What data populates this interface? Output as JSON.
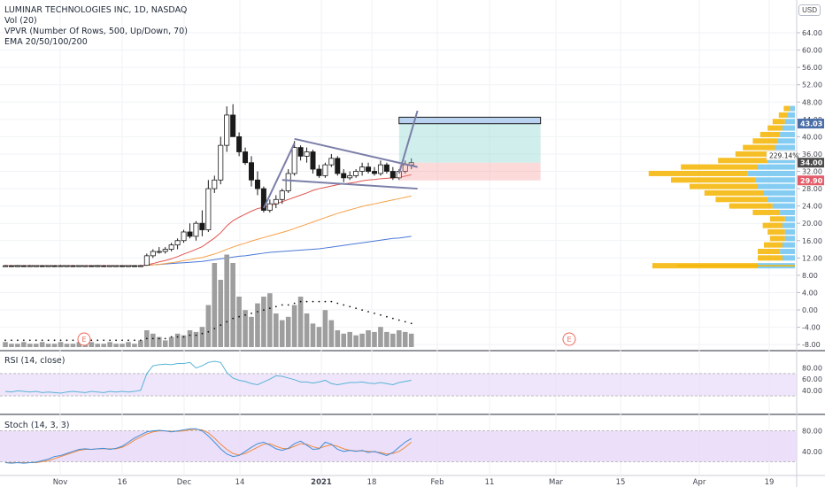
{
  "chart_title": "LUMINAR TECHNOLOGIES INC, 1D, NASDAQ",
  "indicators": [
    "Vol (20)",
    "VPVR (Number Of Rows, 500, Up/Down, 70)",
    "EMA 20/50/100/200"
  ],
  "currency": "USD",
  "rsi_label": "RSI (14, close)",
  "stoch_label": "Stoch (14, 3, 3)",
  "price_axis_labels": [
    "64.00",
    "60.00",
    "56.00",
    "52.00",
    "48.00",
    "44.00",
    "40.00",
    "36.00",
    "32.00",
    "28.00",
    "24.00",
    "20.00",
    "16.00",
    "12.00",
    "8.00",
    "4.00",
    "0.00",
    "-4.00",
    "-8.00"
  ],
  "price_badges": [
    {
      "label": "43.03",
      "value": 43.03,
      "color": "#4a6ea8"
    },
    {
      "label": "34.00",
      "value": 34.0,
      "color": "#4a4a4a"
    },
    {
      "label": "29.90",
      "value": 29.9,
      "color": "#e35d6a"
    }
  ],
  "percent_label": "229.14%",
  "rsi_axis_labels": [
    "80.00",
    "60.00",
    "40.00"
  ],
  "stoch_axis_labels": [
    "80.00",
    "40.00"
  ],
  "x_axis_labels": [
    "Nov",
    "16",
    "Dec",
    "14",
    "2021",
    "18",
    "Feb",
    "11",
    "Mar",
    "15",
    "Apr",
    "19"
  ],
  "earnings_marker": "E",
  "colors": {
    "up_candle": "#ffffff",
    "down_candle": "#1a1a1a",
    "ema20": "#e2544e",
    "ema50": "#f5a14a",
    "ema100": "#4a78d6",
    "volume": "#9e9e9e",
    "vpvr_up": "#6fc3f0",
    "vpvr_down": "#f5b400",
    "rsi": "#57b4d6",
    "stoch_k": "#3f8fd9",
    "stoch_d": "#f08a3c",
    "band_fill": "#eadcfa",
    "pattern": "#7b7fa8"
  },
  "chart_data": {
    "type": "candlestick",
    "ylim": [
      -8,
      64
    ],
    "candles": [
      {
        "o": 10.2,
        "h": 10.4,
        "l": 10.0,
        "c": 10.2
      },
      {
        "o": 10.2,
        "h": 10.3,
        "l": 10.0,
        "c": 10.1
      },
      {
        "o": 10.1,
        "h": 10.4,
        "l": 10.0,
        "c": 10.2
      },
      {
        "o": 10.2,
        "h": 10.3,
        "l": 10.0,
        "c": 10.1
      },
      {
        "o": 10.1,
        "h": 10.4,
        "l": 10.0,
        "c": 10.2
      },
      {
        "o": 10.2,
        "h": 10.3,
        "l": 10.0,
        "c": 10.2
      },
      {
        "o": 10.2,
        "h": 10.3,
        "l": 10.0,
        "c": 10.1
      },
      {
        "o": 10.1,
        "h": 10.3,
        "l": 10.0,
        "c": 10.2
      },
      {
        "o": 10.2,
        "h": 10.3,
        "l": 10.0,
        "c": 10.1
      },
      {
        "o": 10.1,
        "h": 10.4,
        "l": 10.0,
        "c": 10.2
      },
      {
        "o": 10.2,
        "h": 10.3,
        "l": 10.0,
        "c": 10.2
      },
      {
        "o": 10.2,
        "h": 10.3,
        "l": 10.0,
        "c": 10.1
      },
      {
        "o": 10.1,
        "h": 10.3,
        "l": 10.0,
        "c": 10.2
      },
      {
        "o": 10.2,
        "h": 10.3,
        "l": 10.0,
        "c": 10.2
      },
      {
        "o": 10.2,
        "h": 10.3,
        "l": 10.0,
        "c": 10.1
      },
      {
        "o": 10.1,
        "h": 10.4,
        "l": 10.0,
        "c": 10.2
      },
      {
        "o": 10.2,
        "h": 10.3,
        "l": 10.0,
        "c": 10.1
      },
      {
        "o": 10.1,
        "h": 10.3,
        "l": 10.0,
        "c": 10.2
      },
      {
        "o": 10.2,
        "h": 10.3,
        "l": 10.0,
        "c": 10.2
      },
      {
        "o": 10.2,
        "h": 10.3,
        "l": 10.0,
        "c": 10.1
      },
      {
        "o": 10.1,
        "h": 10.3,
        "l": 10.0,
        "c": 10.2
      },
      {
        "o": 10.2,
        "h": 10.3,
        "l": 10.0,
        "c": 10.1
      },
      {
        "o": 10.1,
        "h": 10.4,
        "l": 10.0,
        "c": 10.2
      },
      {
        "o": 10.3,
        "h": 13.0,
        "l": 10.2,
        "c": 12.5
      },
      {
        "o": 12.5,
        "h": 14.0,
        "l": 12.0,
        "c": 13.5
      },
      {
        "o": 13.5,
        "h": 14.5,
        "l": 13.0,
        "c": 13.5
      },
      {
        "o": 13.5,
        "h": 14.5,
        "l": 13.0,
        "c": 14.0
      },
      {
        "o": 14.0,
        "h": 15.5,
        "l": 13.5,
        "c": 15.0
      },
      {
        "o": 15.0,
        "h": 16.5,
        "l": 14.0,
        "c": 16.0
      },
      {
        "o": 16.0,
        "h": 18.5,
        "l": 15.5,
        "c": 18.0
      },
      {
        "o": 18.0,
        "h": 20.0,
        "l": 16.5,
        "c": 17.0
      },
      {
        "o": 17.0,
        "h": 20.5,
        "l": 16.0,
        "c": 20.0
      },
      {
        "o": 20.0,
        "h": 23.0,
        "l": 17.0,
        "c": 18.5
      },
      {
        "o": 18.5,
        "h": 30.0,
        "l": 18.0,
        "c": 28.0
      },
      {
        "o": 28.0,
        "h": 31.0,
        "l": 27.0,
        "c": 30.0
      },
      {
        "o": 30.0,
        "h": 40.0,
        "l": 29.0,
        "c": 38.0
      },
      {
        "o": 38.0,
        "h": 47.0,
        "l": 36.5,
        "c": 45.0
      },
      {
        "o": 45.0,
        "h": 47.5,
        "l": 40.0,
        "c": 40.0
      },
      {
        "o": 40.0,
        "h": 41.0,
        "l": 35.5,
        "c": 36.5
      },
      {
        "o": 36.5,
        "h": 37.5,
        "l": 33.5,
        "c": 34.0
      },
      {
        "o": 34.0,
        "h": 35.5,
        "l": 28.5,
        "c": 30.0
      },
      {
        "o": 30.0,
        "h": 32.0,
        "l": 26.5,
        "c": 28.0
      },
      {
        "o": 28.0,
        "h": 28.5,
        "l": 22.5,
        "c": 23.0
      },
      {
        "o": 23.0,
        "h": 25.5,
        "l": 22.5,
        "c": 24.5
      },
      {
        "o": 24.5,
        "h": 26.5,
        "l": 23.5,
        "c": 25.5
      },
      {
        "o": 25.5,
        "h": 28.0,
        "l": 24.5,
        "c": 27.5
      },
      {
        "o": 27.5,
        "h": 32.5,
        "l": 27.0,
        "c": 31.5
      },
      {
        "o": 31.5,
        "h": 39.0,
        "l": 31.0,
        "c": 37.5
      },
      {
        "o": 37.5,
        "h": 38.0,
        "l": 34.5,
        "c": 35.5
      },
      {
        "o": 35.5,
        "h": 37.5,
        "l": 34.0,
        "c": 36.5
      },
      {
        "o": 36.5,
        "h": 37.0,
        "l": 31.5,
        "c": 32.5
      },
      {
        "o": 32.5,
        "h": 33.5,
        "l": 30.5,
        "c": 31.0
      },
      {
        "o": 31.0,
        "h": 34.0,
        "l": 30.5,
        "c": 33.5
      },
      {
        "o": 33.5,
        "h": 36.0,
        "l": 33.0,
        "c": 35.0
      },
      {
        "o": 35.0,
        "h": 35.5,
        "l": 31.0,
        "c": 31.5
      },
      {
        "o": 31.5,
        "h": 32.5,
        "l": 29.5,
        "c": 30.5
      },
      {
        "o": 30.5,
        "h": 32.0,
        "l": 30.0,
        "c": 31.0
      },
      {
        "o": 31.0,
        "h": 32.5,
        "l": 30.5,
        "c": 32.0
      },
      {
        "o": 32.0,
        "h": 34.0,
        "l": 31.0,
        "c": 33.0
      },
      {
        "o": 33.0,
        "h": 34.0,
        "l": 31.5,
        "c": 32.0
      },
      {
        "o": 32.0,
        "h": 33.0,
        "l": 31.0,
        "c": 31.5
      },
      {
        "o": 31.5,
        "h": 34.5,
        "l": 31.0,
        "c": 33.5
      },
      {
        "o": 33.5,
        "h": 34.0,
        "l": 31.5,
        "c": 32.0
      },
      {
        "o": 32.0,
        "h": 33.0,
        "l": 30.0,
        "c": 30.5
      },
      {
        "o": 30.5,
        "h": 32.5,
        "l": 30.0,
        "c": 32.0
      },
      {
        "o": 32.0,
        "h": 34.5,
        "l": 31.5,
        "c": 33.5
      },
      {
        "o": 33.5,
        "h": 35.0,
        "l": 32.5,
        "c": 34.0
      }
    ],
    "ema20": [
      10.2,
      10.2,
      10.2,
      10.2,
      10.2,
      10.2,
      10.2,
      10.2,
      10.2,
      10.2,
      10.2,
      10.2,
      10.2,
      10.2,
      10.2,
      10.2,
      10.2,
      10.2,
      10.2,
      10.2,
      10.2,
      10.2,
      10.2,
      10.4,
      10.7,
      11.1,
      11.4,
      11.8,
      12.3,
      12.9,
      13.4,
      14.0,
      14.6,
      15.6,
      16.6,
      17.8,
      19.4,
      20.6,
      21.4,
      22.1,
      22.8,
      23.4,
      23.7,
      24.1,
      24.5,
      25.0,
      25.5,
      26.0,
      26.5,
      27.0,
      27.6,
      28.0,
      28.3,
      28.6,
      28.9,
      29.1,
      29.3,
      29.5,
      29.8,
      30.0,
      30.1,
      30.3,
      30.4,
      30.5,
      30.6,
      30.9,
      31.2
    ],
    "ema50": [
      null,
      null,
      null,
      null,
      null,
      null,
      null,
      null,
      null,
      null,
      null,
      null,
      null,
      null,
      null,
      null,
      null,
      null,
      null,
      null,
      null,
      null,
      10.2,
      10.3,
      10.4,
      10.5,
      10.7,
      10.9,
      11.1,
      11.4,
      11.6,
      11.9,
      12.1,
      12.5,
      12.9,
      13.4,
      14.0,
      14.5,
      15.0,
      15.4,
      15.9,
      16.3,
      16.7,
      17.1,
      17.5,
      17.9,
      18.3,
      18.8,
      19.3,
      19.8,
      20.3,
      20.8,
      21.3,
      21.8,
      22.3,
      22.7,
      23.1,
      23.5,
      23.9,
      24.2,
      24.5,
      24.8,
      25.1,
      25.4,
      25.7,
      26.0,
      26.3
    ],
    "ema100": [
      null,
      null,
      null,
      null,
      null,
      null,
      null,
      null,
      null,
      null,
      null,
      null,
      null,
      null,
      null,
      null,
      null,
      null,
      null,
      null,
      null,
      null,
      10.2,
      10.3,
      10.4,
      10.5,
      10.6,
      10.7,
      10.8,
      10.9,
      11.0,
      11.1,
      11.2,
      11.4,
      11.6,
      11.8,
      12.0,
      12.2,
      12.4,
      12.5,
      12.7,
      12.9,
      13.1,
      13.3,
      13.4,
      13.5,
      13.6,
      13.7,
      13.8,
      13.9,
      14.0,
      14.1,
      14.3,
      14.5,
      14.7,
      14.9,
      15.1,
      15.3,
      15.5,
      15.7,
      15.9,
      16.1,
      16.3,
      16.5,
      16.6,
      16.8,
      17.0
    ],
    "ema200_dashed": [
      10.2,
      10.2,
      10.2,
      10.2,
      10.2,
      10.2,
      10.2,
      10.2,
      10.2,
      10.2,
      10.2,
      10.2,
      10.2,
      10.2,
      10.2,
      10.2,
      10.2,
      10.2,
      10.2,
      10.2,
      10.2,
      10.2,
      10.2
    ],
    "volume": [
      0.3,
      0.2,
      0.2,
      0.3,
      0.2,
      0.2,
      0.3,
      0.2,
      0.2,
      0.3,
      0.2,
      0.2,
      0.3,
      0.2,
      0.3,
      0.2,
      0.2,
      0.3,
      0.2,
      0.2,
      0.3,
      0.2,
      0.4,
      1.0,
      0.8,
      0.6,
      0.4,
      0.6,
      0.8,
      0.7,
      1.0,
      0.9,
      1.2,
      2.5,
      5.0,
      4.0,
      5.5,
      5.0,
      3.0,
      2.2,
      1.8,
      2.6,
      3.0,
      3.2,
      2.0,
      1.6,
      1.8,
      2.5,
      3.0,
      2.0,
      1.4,
      1.2,
      2.2,
      1.6,
      1.0,
      0.8,
      0.9,
      0.7,
      0.8,
      1.0,
      0.9,
      1.2,
      0.9,
      0.8,
      1.0,
      0.9,
      0.8
    ],
    "volume_ma": [
      0.3,
      0.3,
      0.3,
      0.3,
      0.3,
      0.3,
      0.3,
      0.3,
      0.3,
      0.3,
      0.3,
      0.3,
      0.3,
      0.3,
      0.3,
      0.3,
      0.3,
      0.3,
      0.3,
      0.3,
      0.3,
      0.3,
      0.3,
      0.4,
      0.4,
      0.4,
      0.4,
      0.5,
      0.5,
      0.5,
      0.6,
      0.6,
      0.7,
      0.8,
      1.0,
      1.2,
      1.4,
      1.6,
      1.7,
      1.8,
      1.9,
      2.0,
      2.1,
      2.2,
      2.3,
      2.4,
      2.4,
      2.5,
      2.6,
      2.6,
      2.6,
      2.6,
      2.6,
      2.6,
      2.5,
      2.4,
      2.3,
      2.2,
      2.1,
      2.0,
      1.9,
      1.8,
      1.7,
      1.6,
      1.5,
      1.4,
      1.3
    ],
    "rsi": [
      38,
      37,
      39,
      38,
      37,
      38,
      36,
      37,
      36,
      35,
      37,
      38,
      37,
      36,
      38,
      37,
      36,
      38,
      37,
      38,
      37,
      38,
      40,
      70,
      84,
      86,
      87,
      86,
      88,
      88,
      90,
      80,
      84,
      90,
      92,
      90,
      72,
      62,
      58,
      56,
      52,
      50,
      55,
      60,
      66,
      65,
      62,
      59,
      55,
      55,
      53,
      55,
      58,
      52,
      50,
      52,
      54,
      54,
      55,
      53,
      52,
      54,
      52,
      50,
      54,
      56,
      58
    ],
    "rsi_range": [
      0,
      100
    ],
    "stoch_k": [
      18,
      17,
      18,
      17,
      18,
      19,
      22,
      25,
      30,
      32,
      36,
      40,
      44,
      45,
      44,
      45,
      46,
      44,
      46,
      50,
      58,
      66,
      72,
      78,
      80,
      81,
      80,
      78,
      80,
      82,
      84,
      84,
      80,
      70,
      58,
      45,
      35,
      30,
      32,
      40,
      48,
      55,
      58,
      52,
      45,
      42,
      46,
      55,
      60,
      52,
      44,
      45,
      58,
      54,
      44,
      40,
      42,
      40,
      42,
      38,
      40,
      36,
      32,
      38,
      48,
      58,
      65
    ],
    "stoch_d": [
      18,
      18,
      18,
      18,
      18,
      18,
      20,
      22,
      26,
      30,
      34,
      38,
      42,
      44,
      44,
      45,
      45,
      45,
      45,
      48,
      54,
      62,
      68,
      74,
      78,
      80,
      80,
      79,
      79,
      80,
      82,
      83,
      82,
      76,
      66,
      54,
      44,
      36,
      33,
      36,
      42,
      48,
      54,
      55,
      50,
      46,
      45,
      50,
      55,
      54,
      49,
      46,
      50,
      53,
      50,
      45,
      42,
      41,
      41,
      40,
      39,
      38,
      35,
      36,
      40,
      48,
      58
    ],
    "stoch_range": [
      0,
      100
    ],
    "vpvr": [
      {
        "price": 10.2,
        "up": 0.3,
        "down": 0.85
      },
      {
        "price": 12.0,
        "up": 0.1,
        "down": 0.2
      },
      {
        "price": 13.5,
        "up": 0.12,
        "down": 0.18
      },
      {
        "price": 15.0,
        "up": 0.1,
        "down": 0.15
      },
      {
        "price": 16.5,
        "up": 0.08,
        "down": 0.12
      },
      {
        "price": 18.0,
        "up": 0.08,
        "down": 0.14
      },
      {
        "price": 19.5,
        "up": 0.1,
        "down": 0.16
      },
      {
        "price": 21.0,
        "up": 0.08,
        "down": 0.12
      },
      {
        "price": 22.5,
        "up": 0.12,
        "down": 0.22
      },
      {
        "price": 24.0,
        "up": 0.18,
        "down": 0.35
      },
      {
        "price": 25.5,
        "up": 0.22,
        "down": 0.42
      },
      {
        "price": 27.0,
        "up": 0.25,
        "down": 0.48
      },
      {
        "price": 28.5,
        "up": 0.3,
        "down": 0.55
      },
      {
        "price": 30.0,
        "up": 0.32,
        "down": 0.68
      },
      {
        "price": 31.5,
        "up": 0.38,
        "down": 0.8
      },
      {
        "price": 33.0,
        "up": 0.3,
        "down": 0.62
      },
      {
        "price": 34.5,
        "up": 0.22,
        "down": 0.4
      },
      {
        "price": 36.0,
        "up": 0.18,
        "down": 0.3
      },
      {
        "price": 37.5,
        "up": 0.16,
        "down": 0.26
      },
      {
        "price": 39.0,
        "up": 0.14,
        "down": 0.2
      },
      {
        "price": 40.5,
        "up": 0.12,
        "down": 0.16
      },
      {
        "price": 42.0,
        "up": 0.1,
        "down": 0.12
      },
      {
        "price": 43.5,
        "up": 0.08,
        "down": 0.1
      },
      {
        "price": 45.0,
        "up": 0.06,
        "down": 0.07
      },
      {
        "price": 46.5,
        "up": 0.04,
        "down": 0.05
      }
    ],
    "pattern": {
      "flagpole": [
        {
          "i": 42,
          "p": 23.5
        },
        {
          "i": 47,
          "p": 38.5
        }
      ],
      "upper": [
        {
          "i": 47,
          "p": 39.5
        },
        {
          "i": 67,
          "p": 33.0
        }
      ],
      "lower": [
        {
          "i": 45,
          "p": 30.0
        },
        {
          "i": 67,
          "p": 28.0
        }
      ],
      "breakout": [
        {
          "i": 64,
          "p": 31.5
        },
        {
          "i": 67,
          "p": 46.0
        }
      ],
      "target": [
        {
          "i": 64,
          "p": 33.0
        },
        {
          "i": 65.8,
          "p": 44.0
        }
      ],
      "target_box": {
        "i0": 64,
        "i1": 87,
        "p0": 43.0,
        "p1": 44.5
      },
      "profit_zone": {
        "i0": 64,
        "i1": 87,
        "p0": 34.0,
        "p1": 43.0
      },
      "risk_zone": {
        "i0": 64,
        "i1": 87,
        "p0": 29.9,
        "p1": 34.0
      }
    }
  }
}
